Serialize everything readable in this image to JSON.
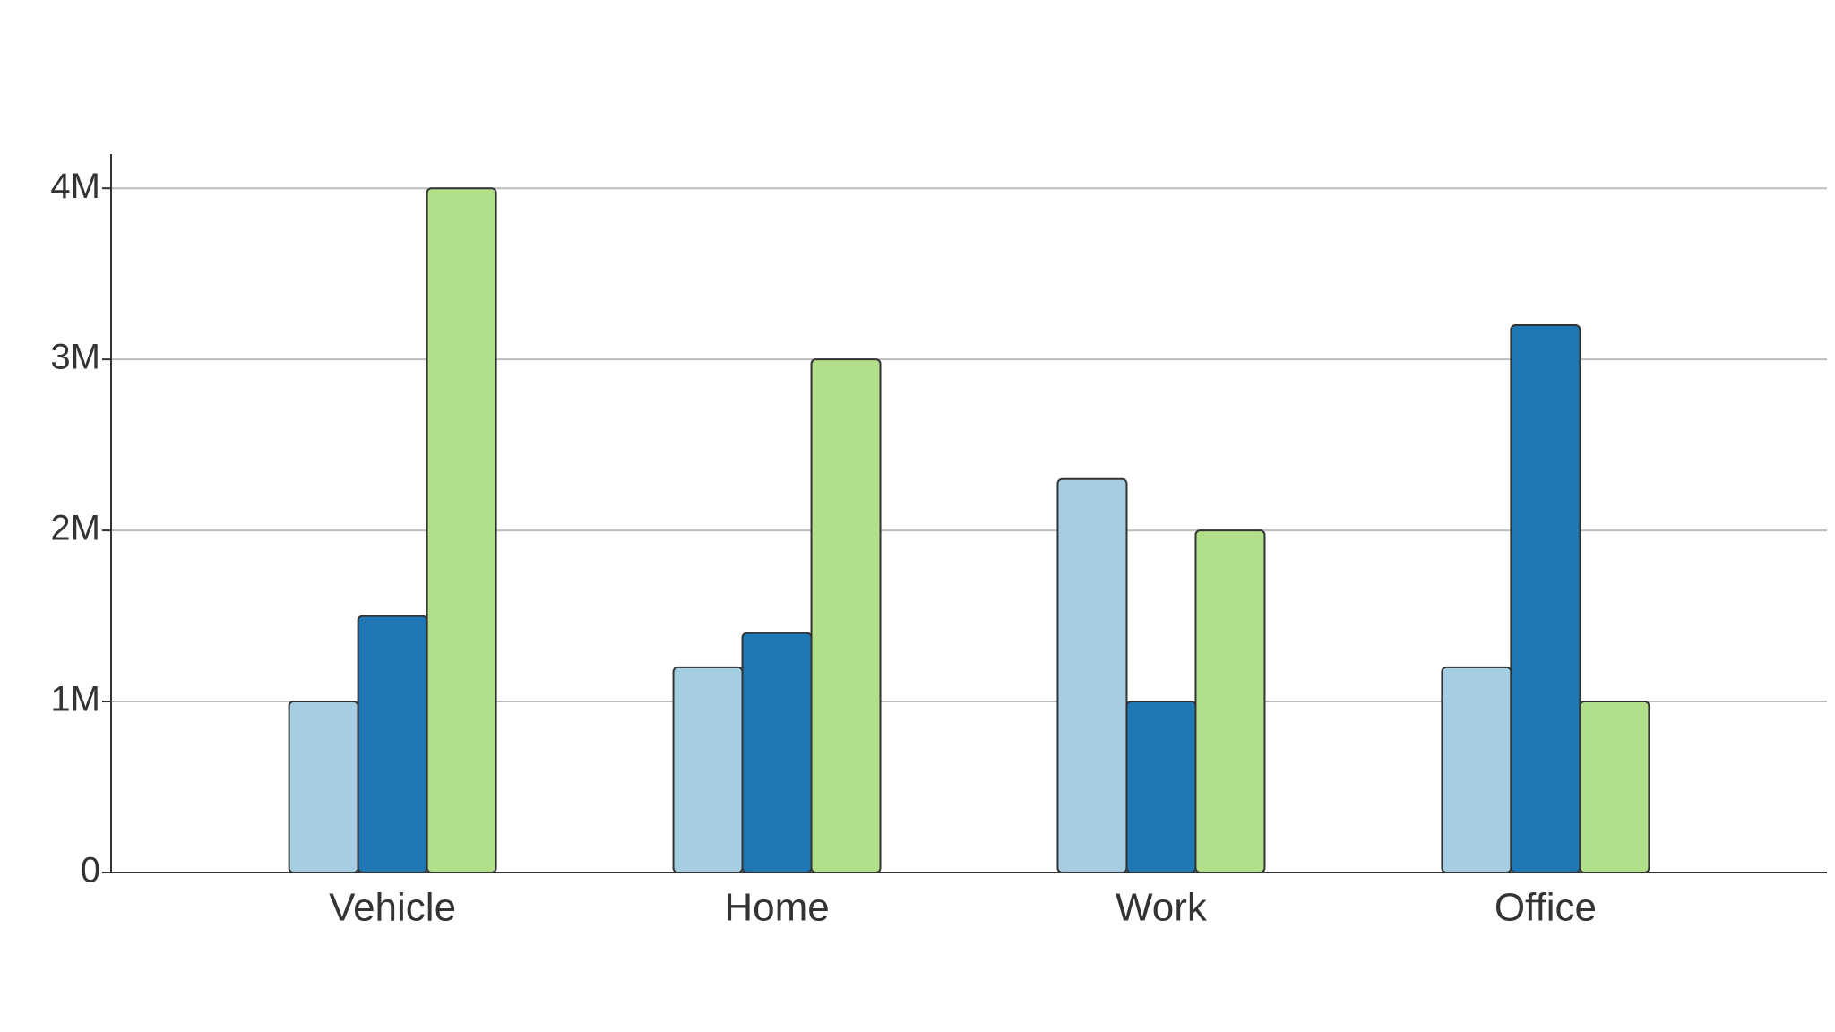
{
  "chart_data": {
    "type": "bar",
    "categories": [
      "Vehicle",
      "Home",
      "Work",
      "Office"
    ],
    "series": [
      {
        "color": "#a6cee3",
        "values": [
          1000000,
          1200000,
          2300000,
          1200000
        ]
      },
      {
        "color": "#1f78b4",
        "values": [
          1500000,
          1400000,
          1000000,
          3200000
        ]
      },
      {
        "color": "#b2df8a",
        "values": [
          4000000,
          3000000,
          2000000,
          1000000
        ]
      }
    ],
    "ylim": [
      0,
      4200000
    ],
    "yticks": [
      0,
      {
        "value": 1000000,
        "label": "1M"
      },
      {
        "value": 2000000,
        "label": "2M"
      },
      {
        "value": 3000000,
        "label": "3M"
      },
      {
        "value": 4000000,
        "label": "4M"
      }
    ],
    "grid": true
  }
}
